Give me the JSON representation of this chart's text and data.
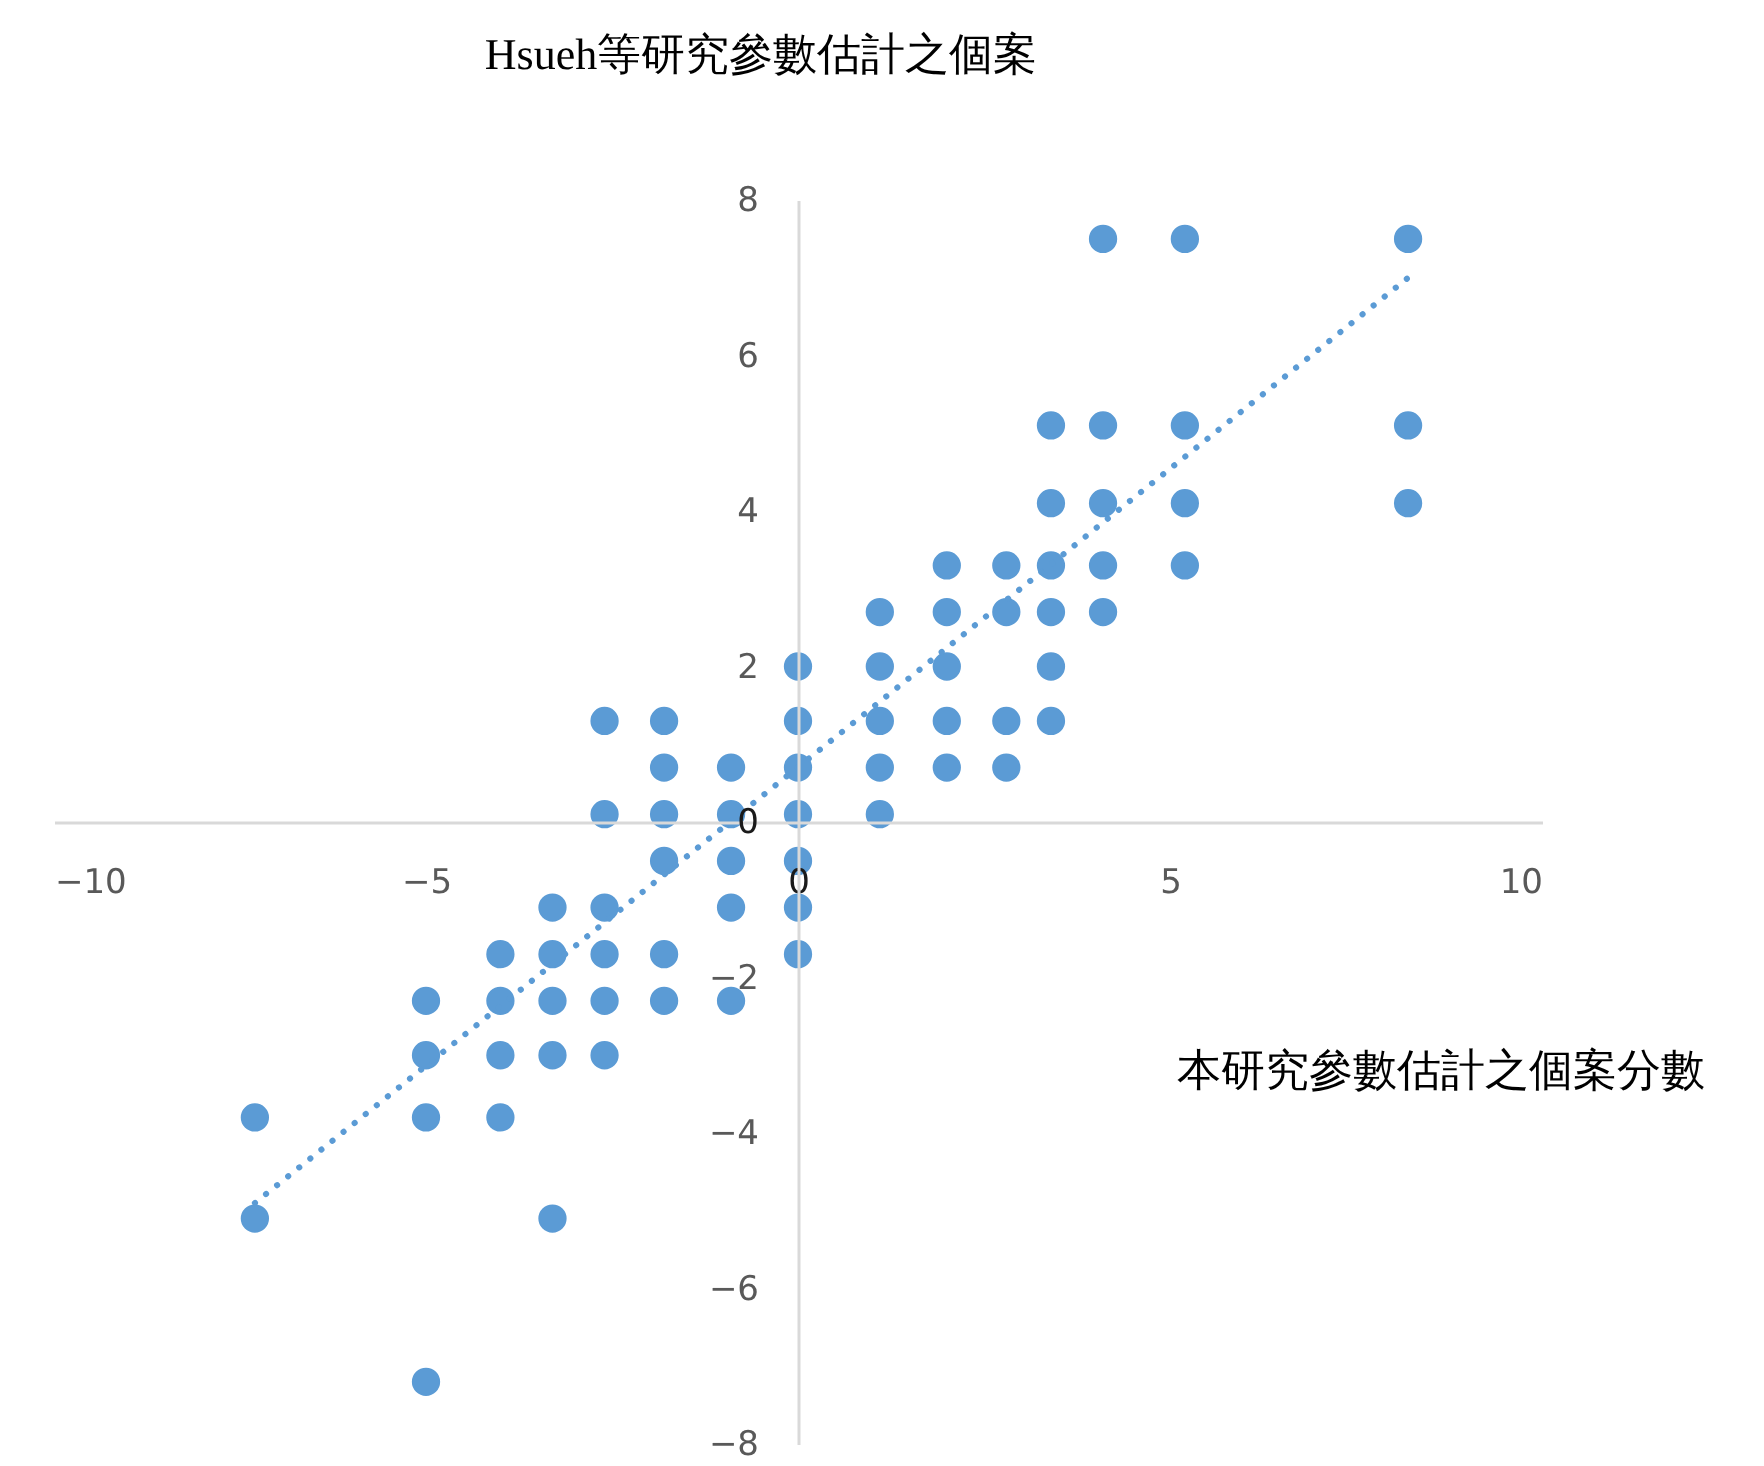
{
  "chart_data": {
    "type": "scatter",
    "ylabel": "Hsueh等研究參數估計之個案",
    "xlabel": "本研究參數估計之個案分數",
    "xlim": [
      -10,
      10
    ],
    "ylim": [
      -8,
      8
    ],
    "xticks": [
      -10,
      -5,
      0,
      5,
      10
    ],
    "yticks": [
      -8,
      -6,
      -4,
      -2,
      0,
      2,
      4,
      6,
      8
    ],
    "grid": false,
    "series": [
      {
        "marker": "circle",
        "color": "#5b9bd5",
        "x": [
          4.1,
          5.2,
          8.2,
          3.4,
          4.1,
          5.2,
          8.2,
          3.4,
          4.1,
          5.2,
          8.2,
          2.0,
          2.8,
          3.4,
          4.1,
          5.2,
          1.1,
          2.0,
          2.8,
          3.4,
          4.1,
          0,
          1.1,
          2.0,
          3.4,
          -2.6,
          -1.8,
          0,
          1.1,
          2.0,
          2.8,
          3.4,
          -1.8,
          -0.9,
          0,
          1.1,
          2.0,
          2.8,
          -2.6,
          -1.8,
          -0.9,
          0,
          1.1,
          -1.8,
          -0.9,
          0,
          -3.3,
          -2.6,
          -0.9,
          0,
          -4.0,
          -3.3,
          -2.6,
          -1.8,
          0,
          -5.0,
          -4.0,
          -3.3,
          -2.6,
          -1.8,
          -0.9,
          -5.0,
          -4.0,
          -3.3,
          -2.6,
          -7.3,
          -5.0,
          -4.0,
          -7.3,
          -3.3,
          -5.0
        ],
        "values": [
          7.5,
          7.5,
          7.5,
          5.1,
          5.1,
          5.1,
          5.1,
          4.1,
          4.1,
          4.1,
          4.1,
          3.3,
          3.3,
          3.3,
          3.3,
          3.3,
          2.7,
          2.7,
          2.7,
          2.7,
          2.7,
          2.0,
          2.0,
          2.0,
          2.0,
          1.3,
          1.3,
          1.3,
          1.3,
          1.3,
          1.3,
          1.3,
          0.7,
          0.7,
          0.7,
          0.7,
          0.7,
          0.7,
          0.1,
          0.1,
          0.1,
          0.1,
          0.1,
          -0.5,
          -0.5,
          -0.5,
          -1.1,
          -1.1,
          -1.1,
          -1.1,
          -1.7,
          -1.7,
          -1.7,
          -1.7,
          -1.7,
          -2.3,
          -2.3,
          -2.3,
          -2.3,
          -2.3,
          -2.3,
          -3.0,
          -3.0,
          -3.0,
          -3.0,
          -3.8,
          -3.8,
          -3.8,
          -5.1,
          -5.1,
          -7.2
        ]
      },
      {
        "type": "line",
        "color": "#5b9bd5",
        "line_style": "dotted",
        "x": [
          -7.3,
          8.2
        ],
        "values": [
          -4.9,
          7.0
        ]
      }
    ]
  }
}
